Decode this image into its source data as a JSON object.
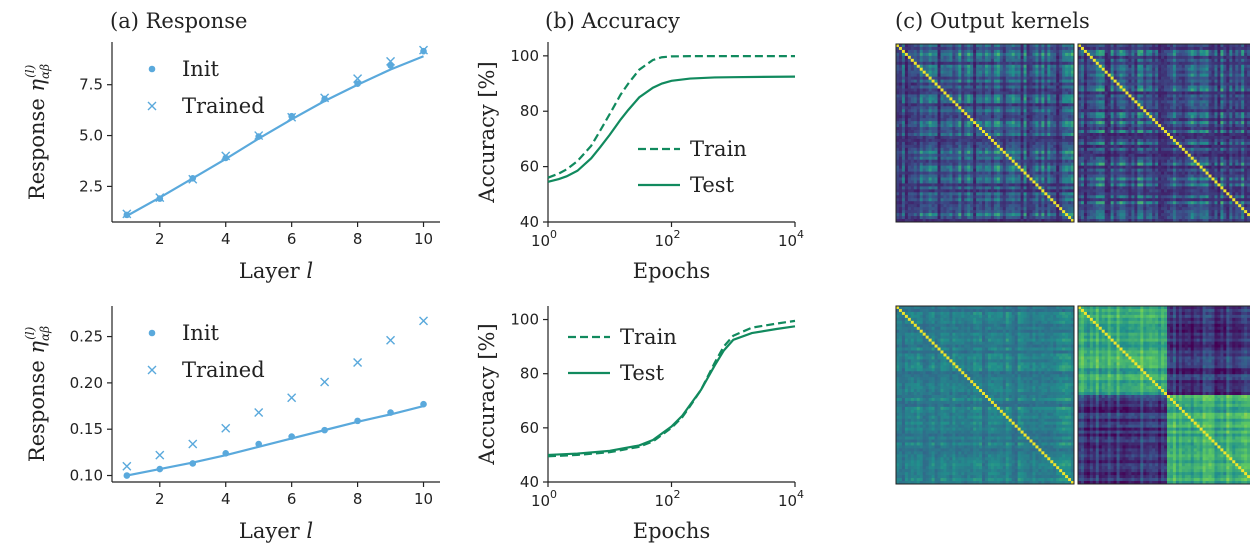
{
  "colors": {
    "response": "#5aa9dc",
    "accuracy": "#118a5e",
    "heat_low": "#440154",
    "heat_mid": "#21918c",
    "heat_high": "#fde725"
  },
  "panel_titles": {
    "a": "(a) Response",
    "b": "(b) Accuracy",
    "c": "(c) Output kernels"
  },
  "chart_data": [
    {
      "id": "response-top",
      "type": "scatter",
      "xlabel": "Layer l",
      "ylabel": "Response η_{αβ}^{(l)}",
      "xlim": [
        0.55,
        10.5
      ],
      "ylim": [
        0.75,
        9.6
      ],
      "xticks": [
        2,
        4,
        6,
        8,
        10
      ],
      "yticks": [
        2.5,
        5.0,
        7.5
      ],
      "ytick_labels": [
        "2.5",
        "5.0",
        "7.5"
      ],
      "series": [
        {
          "name": "Init",
          "marker": "dot",
          "x": [
            1,
            2,
            3,
            4,
            5,
            6,
            7,
            8,
            9,
            10
          ],
          "y": [
            1.1,
            1.9,
            2.9,
            3.9,
            4.95,
            5.95,
            6.8,
            7.55,
            8.45,
            9.15
          ]
        },
        {
          "name": "Trained",
          "marker": "x",
          "x": [
            1,
            2,
            3,
            4,
            5,
            6,
            7,
            8,
            9,
            10
          ],
          "y": [
            1.15,
            1.95,
            2.85,
            4.0,
            5.0,
            5.9,
            6.85,
            7.8,
            8.65,
            9.2
          ]
        }
      ],
      "fit": {
        "x": [
          1,
          2,
          3,
          4,
          5,
          6,
          7,
          8,
          9,
          10
        ],
        "y": [
          1.05,
          1.95,
          2.9,
          3.85,
          4.85,
          5.8,
          6.7,
          7.5,
          8.25,
          8.9
        ]
      },
      "legend": "upper-left"
    },
    {
      "id": "response-bottom",
      "type": "scatter",
      "xlabel": "Layer l",
      "ylabel": "Response η_{αβ}^{(l)}",
      "xlim": [
        0.55,
        10.5
      ],
      "ylim": [
        0.093,
        0.283
      ],
      "xticks": [
        2,
        4,
        6,
        8,
        10
      ],
      "yticks": [
        0.1,
        0.15,
        0.2,
        0.25
      ],
      "ytick_labels": [
        "0.10",
        "0.15",
        "0.20",
        "0.25"
      ],
      "series": [
        {
          "name": "Init",
          "marker": "dot",
          "x": [
            1,
            2,
            3,
            4,
            5,
            6,
            7,
            8,
            9,
            10
          ],
          "y": [
            0.1,
            0.107,
            0.113,
            0.124,
            0.134,
            0.142,
            0.149,
            0.159,
            0.168,
            0.177
          ]
        },
        {
          "name": "Trained",
          "marker": "x",
          "x": [
            1,
            2,
            3,
            4,
            5,
            6,
            7,
            8,
            9,
            10
          ],
          "y": [
            0.11,
            0.122,
            0.134,
            0.151,
            0.168,
            0.184,
            0.201,
            0.222,
            0.246,
            0.267
          ]
        }
      ],
      "fit": {
        "x": [
          1,
          2,
          3,
          4,
          5,
          6,
          7,
          8,
          9,
          10
        ],
        "y": [
          0.1,
          0.107,
          0.114,
          0.122,
          0.131,
          0.14,
          0.149,
          0.158,
          0.166,
          0.175
        ]
      },
      "legend": "upper-left"
    },
    {
      "id": "accuracy-top",
      "type": "line",
      "xscale": "log",
      "xlabel": "Epochs",
      "ylabel": "Accuracy [%]",
      "xlim": [
        1,
        10000
      ],
      "ylim": [
        40,
        105
      ],
      "xticks": [
        1,
        100,
        10000
      ],
      "xtick_labels": [
        [
          "10",
          "0"
        ],
        [
          "10",
          "2"
        ],
        [
          "10",
          "4"
        ]
      ],
      "yticks": [
        40,
        60,
        80,
        100
      ],
      "series": [
        {
          "name": "Train",
          "style": "dashed",
          "x": [
            1,
            1.5,
            2,
            3,
            5,
            7,
            10,
            15,
            20,
            30,
            50,
            70,
            100,
            200,
            1000,
            10000
          ],
          "y": [
            56,
            57.5,
            59,
            62,
            67.5,
            73,
            79,
            86,
            90,
            95,
            98.5,
            99.5,
            99.8,
            99.9,
            99.9,
            99.9
          ]
        },
        {
          "name": "Test",
          "style": "solid",
          "x": [
            1,
            1.5,
            2,
            3,
            5,
            7,
            10,
            15,
            20,
            30,
            50,
            70,
            100,
            200,
            500,
            1000,
            10000
          ],
          "y": [
            54.5,
            55.5,
            56.5,
            58.5,
            63,
            67,
            71.5,
            77,
            80.5,
            85,
            88.5,
            90,
            91,
            91.8,
            92.2,
            92.3,
            92.5
          ]
        }
      ],
      "legend": "center-right"
    },
    {
      "id": "accuracy-bottom",
      "type": "line",
      "xscale": "log",
      "xlabel": "Epochs",
      "ylabel": "Accuracy [%]",
      "xlim": [
        1,
        10000
      ],
      "ylim": [
        40,
        105
      ],
      "xticks": [
        1,
        100,
        10000
      ],
      "xtick_labels": [
        [
          "10",
          "0"
        ],
        [
          "10",
          "2"
        ],
        [
          "10",
          "4"
        ]
      ],
      "yticks": [
        40,
        60,
        80,
        100
      ],
      "series": [
        {
          "name": "Train",
          "style": "dashed",
          "x": [
            1,
            3,
            10,
            30,
            50,
            100,
            150,
            200,
            300,
            500,
            700,
            1000,
            2000,
            5000,
            10000
          ],
          "y": [
            49.5,
            50,
            51,
            53,
            55,
            60,
            64,
            68,
            74,
            84,
            90,
            94,
            97,
            98.5,
            99.5
          ]
        },
        {
          "name": "Test",
          "style": "solid",
          "x": [
            1,
            3,
            10,
            30,
            50,
            100,
            150,
            200,
            300,
            500,
            700,
            1000,
            2000,
            5000,
            10000
          ],
          "y": [
            50,
            50.5,
            51.5,
            53.5,
            55.5,
            60.5,
            64.5,
            68.5,
            74,
            83,
            88.5,
            92.5,
            95,
            96.5,
            97.5
          ]
        }
      ],
      "legend": "upper-left"
    },
    {
      "id": "kernel-top",
      "type": "heatmap",
      "matrices": 2,
      "structure": "diagonal-with-noise"
    },
    {
      "id": "kernel-bottom",
      "type": "heatmap",
      "matrices": 2,
      "structure": [
        "diagonal-with-noise",
        "two-block"
      ]
    }
  ]
}
